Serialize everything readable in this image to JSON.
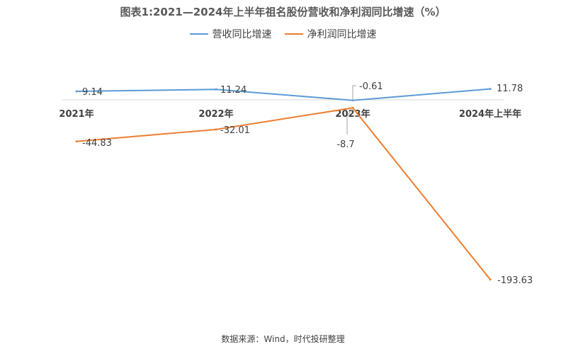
{
  "title": "图表1:2021—2024年上半年祖名股份营收和净利润同比增速（%）",
  "source": "数据来源：Wind，时代投研整理",
  "colors": {
    "revenue": "#5B9BD5",
    "profit": "#ED7D31",
    "axis": "#D9D9D9"
  },
  "chart_data": {
    "type": "line",
    "title": "图表1:2021—2024年上半年祖名股份营收和净利润同比增速（%）",
    "categories": [
      "2021年",
      "2022年",
      "2023年",
      "2024年上半年"
    ],
    "series": [
      {
        "name": "营收同比增速",
        "values": [
          9.14,
          11.24,
          -0.61,
          11.78
        ],
        "labels": [
          "9.14",
          "11.24",
          "-0.61",
          "11.78"
        ]
      },
      {
        "name": "净利润同比增速",
        "values": [
          -44.83,
          -32.01,
          -8.7,
          -193.63
        ],
        "labels": [
          "-44.83",
          "-32.01",
          "-8.7",
          "-193.63"
        ]
      }
    ],
    "ylim": [
      -210,
      30
    ],
    "grid": false,
    "legend": "top-center",
    "xlabel": "",
    "ylabel": ""
  }
}
